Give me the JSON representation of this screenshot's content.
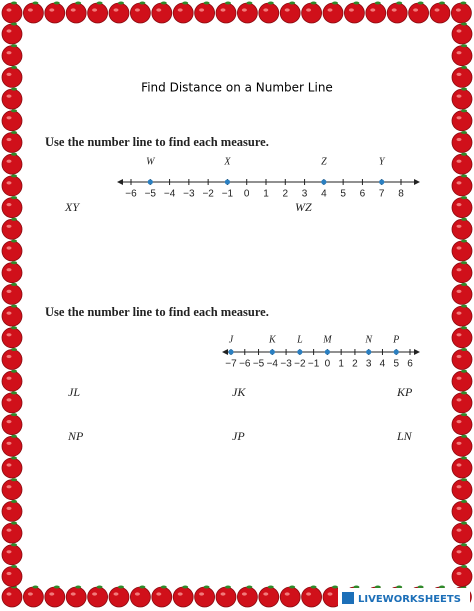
{
  "title": "Find Distance on a Number Line",
  "sections": [
    {
      "instruction": "Use the number line to find each measure.",
      "number_line": {
        "ticks": [
          {
            "value": -6,
            "label": "−6"
          },
          {
            "value": -5,
            "label": "−5"
          },
          {
            "value": -4,
            "label": "−4"
          },
          {
            "value": -3,
            "label": "−3"
          },
          {
            "value": -2,
            "label": "−2"
          },
          {
            "value": -1,
            "label": "−1"
          },
          0,
          1,
          2,
          3,
          4,
          5,
          6,
          7,
          8
        ],
        "points": [
          {
            "label": "W",
            "value": -5
          },
          {
            "label": "X",
            "value": -1
          },
          {
            "label": "Z",
            "value": 4
          },
          {
            "label": "Y",
            "value": 7
          }
        ]
      },
      "questions": [
        [
          "XY",
          "WZ"
        ]
      ]
    },
    {
      "instruction": "Use the number line to find each measure.",
      "number_line": {
        "ticks": [
          {
            "value": -7,
            "label": "−7"
          },
          {
            "value": -6,
            "label": "−6"
          },
          {
            "value": -5,
            "label": "−5"
          },
          {
            "value": -4,
            "label": "−4"
          },
          {
            "value": -3,
            "label": "−3"
          },
          {
            "value": -2,
            "label": "−2"
          },
          {
            "value": -1,
            "label": "−1"
          },
          0,
          1,
          2,
          3,
          4,
          5,
          6
        ],
        "points": [
          {
            "label": "J",
            "value": -7
          },
          {
            "label": "K",
            "value": -4
          },
          {
            "label": "L",
            "value": -2
          },
          {
            "label": "M",
            "value": 0
          },
          {
            "label": "N",
            "value": 3
          },
          {
            "label": "P",
            "value": 5
          }
        ]
      },
      "questions": [
        [
          "JL",
          "JK",
          "KP"
        ],
        [
          "NP",
          "JP",
          "LN"
        ]
      ]
    }
  ],
  "footer": "LIVEWORKSHEETS"
}
